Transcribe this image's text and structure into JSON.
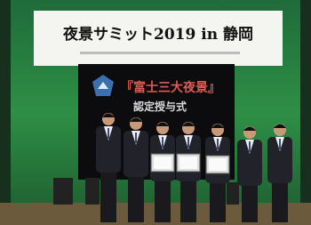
{
  "banner": {
    "title": "夜景サミット2019 in 静岡"
  },
  "screen": {
    "title": "『富士三大夜景』",
    "subtitle": "認定授与式"
  }
}
